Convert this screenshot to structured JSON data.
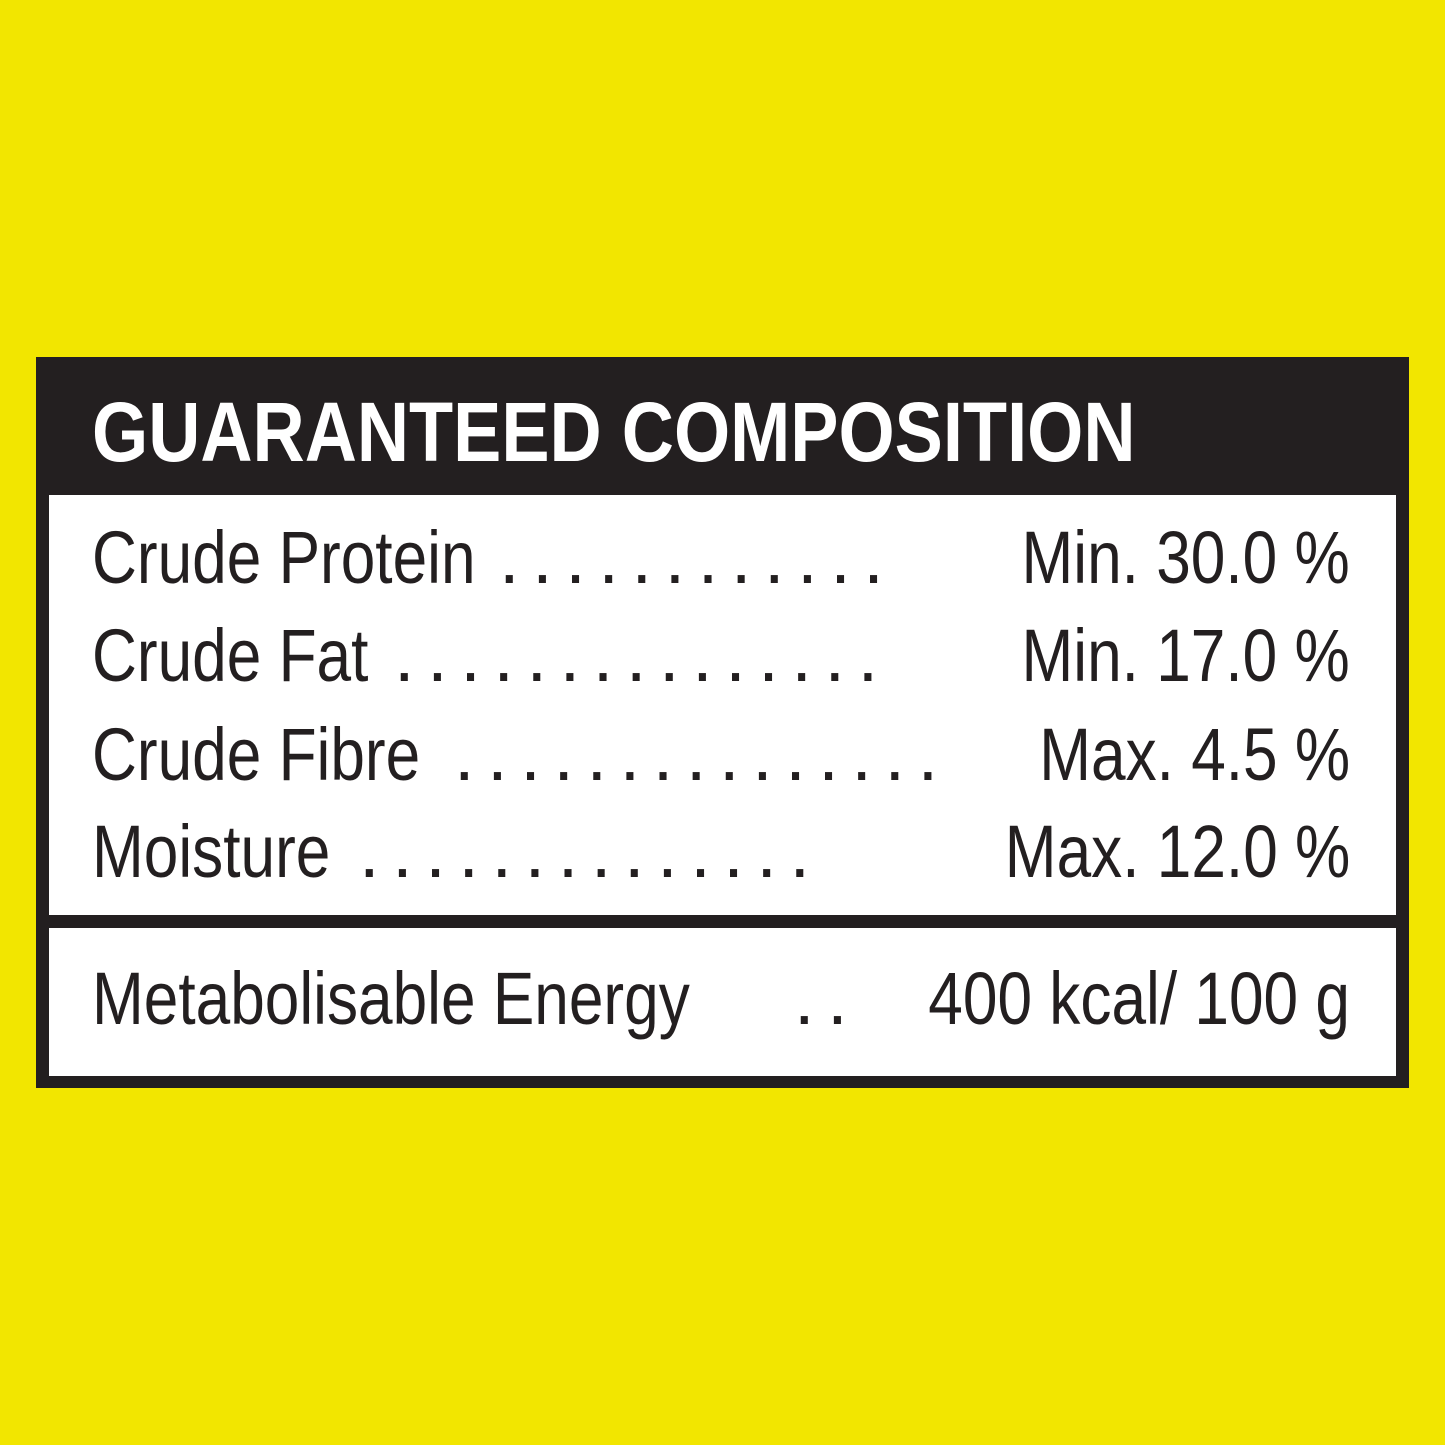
{
  "title": "GUARANTEED COMPOSITION",
  "rows": [
    {
      "label": "Crude Protein",
      "dots": ". . . . . . . . . . . .",
      "value": "Min. 30.0 %"
    },
    {
      "label": "Crude Fat",
      "dots": ". . . . . . . . . . . . . . .",
      "value": "Min. 17.0 %"
    },
    {
      "label": "Crude Fibre",
      "dots": ". . . . . . . . . . . . . . .",
      "value": "Max. 4.5 %"
    },
    {
      "label": "Moisture",
      "dots": ". . . . . . . . . . . . . .",
      "value": "Max. 12.0 %"
    }
  ],
  "energy": {
    "label": "Metabolisable Energy",
    "dots": ". .",
    "value": "400 kcal/ 100 g"
  },
  "colors": {
    "background": "#f2e600",
    "frame": "#231f20",
    "panel": "#ffffff"
  }
}
